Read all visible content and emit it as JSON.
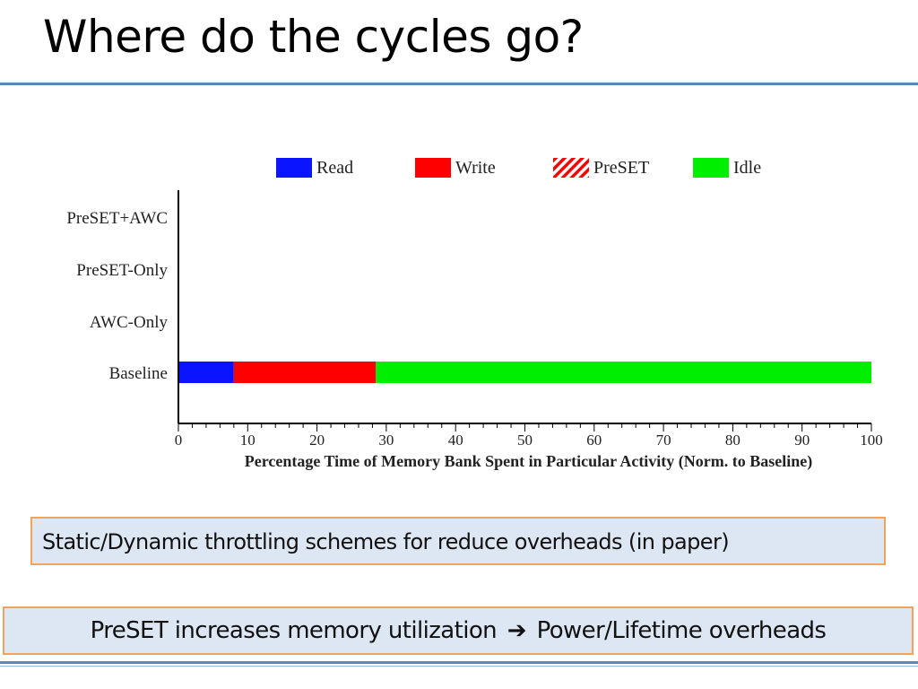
{
  "slide": {
    "title": "Where do the cycles go?",
    "note_1": "Static/Dynamic throttling schemes for reduce overheads (in paper)",
    "note_2_left": "PreSET increases memory utilization",
    "note_2_arrow_icon": "arrow-right-icon",
    "note_2_right": "Power/Lifetime overheads"
  },
  "colors": {
    "read": "#0a14ff",
    "write": "#ff0000",
    "preset": "#ff0000",
    "idle": "#00ee00",
    "rule": "#5b87b8",
    "box_border": "#f0a35a",
    "box_fill": "#dde6f3"
  },
  "chart_data": {
    "type": "bar",
    "orientation": "horizontal",
    "stacked": true,
    "categories": [
      "PreSET+AWC",
      "PreSET-Only",
      "AWC-Only",
      "Baseline"
    ],
    "series": [
      {
        "name": "Read",
        "values": [
          null,
          null,
          null,
          8
        ]
      },
      {
        "name": "Write",
        "values": [
          null,
          null,
          null,
          20.5
        ]
      },
      {
        "name": "PreSET",
        "values": [
          null,
          null,
          null,
          0
        ],
        "pattern": "hatched"
      },
      {
        "name": "Idle",
        "values": [
          null,
          null,
          null,
          71.5
        ]
      }
    ],
    "xlabel": "Percentage Time of Memory Bank Spent in Particular Activity (Norm. to Baseline)",
    "ylabel": "",
    "xlim": [
      0,
      100
    ],
    "xticks": [
      0,
      10,
      20,
      30,
      40,
      50,
      60,
      70,
      80,
      90,
      100
    ],
    "legend": "top",
    "grid": false
  }
}
